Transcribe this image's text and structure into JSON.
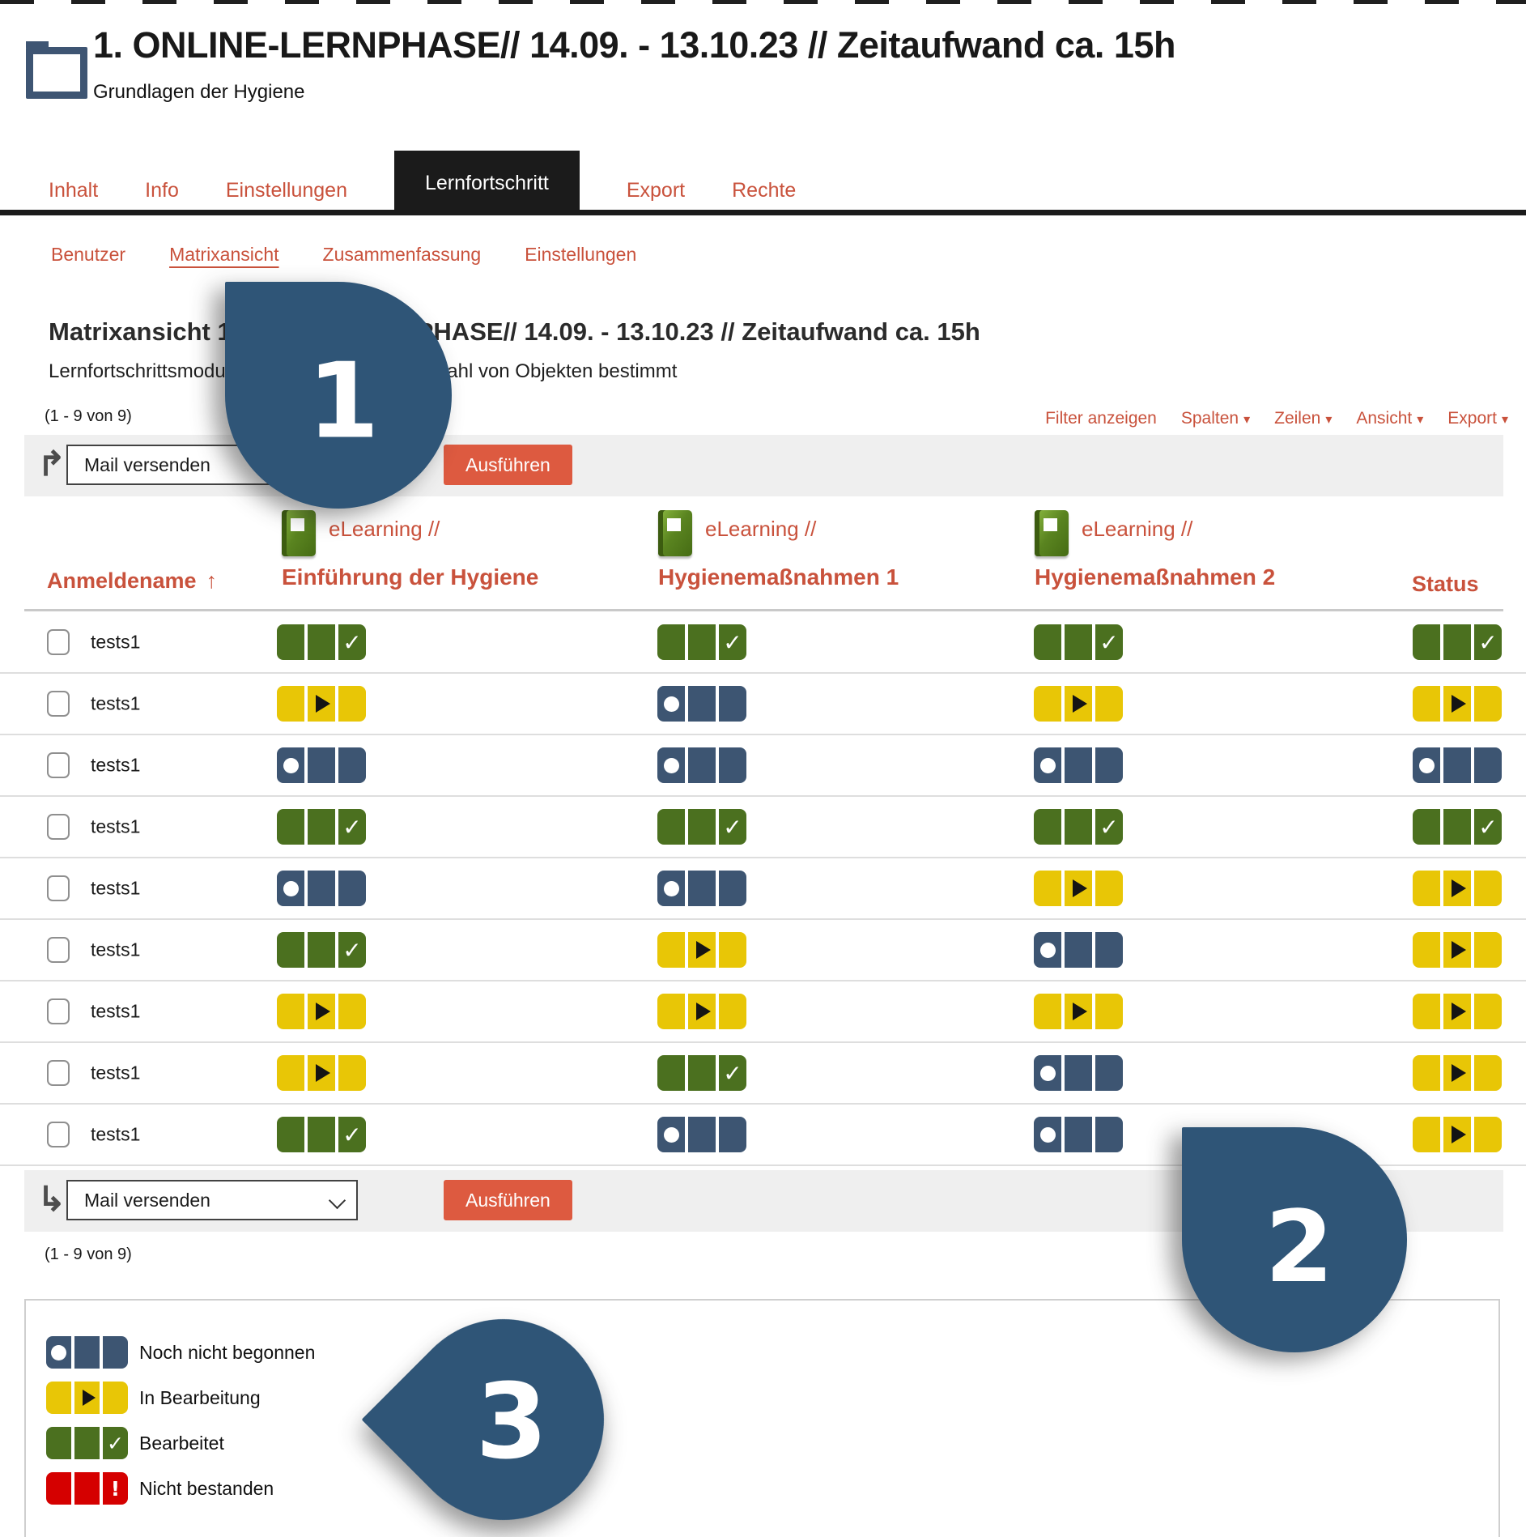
{
  "page": {
    "title": "1. ONLINE-LERNPHASE// 14.09. - 13.10.23 // Zeitaufwand ca. 15h",
    "subtitle": "Grundlagen der Hygiene"
  },
  "tabs": [
    {
      "label": "Inhalt",
      "active": false
    },
    {
      "label": "Info",
      "active": false
    },
    {
      "label": "Einstellungen",
      "active": false
    },
    {
      "label": "Lernfortschritt",
      "active": true
    },
    {
      "label": "Export",
      "active": false
    },
    {
      "label": "Rechte",
      "active": false
    }
  ],
  "subtabs": [
    {
      "label": "Benutzer",
      "active": false
    },
    {
      "label": "Matrixansicht",
      "active": true
    },
    {
      "label": "Zusammenfassung",
      "active": false
    },
    {
      "label": "Einstellungen",
      "active": false
    }
  ],
  "section": {
    "heading": "Matrixansicht 1. ONLINE-LERNPHASE// 14.09. - 13.10.23 // Zeitaufwand ca. 15h",
    "description": "Lernfortschrittsmodus wird anhand einer Auswahl von Objekten bestimmt",
    "pagination": "(1 - 9 von 9)"
  },
  "view_controls": {
    "filter_label": "Filter anzeigen",
    "menus": [
      "Spalten",
      "Zeilen",
      "Ansicht",
      "Export"
    ]
  },
  "toolbar": {
    "select_value": "Mail versenden",
    "execute_label": "Ausführen"
  },
  "table": {
    "user_column": "Anmeldename",
    "status_column": "Status",
    "courses": [
      {
        "type_label": "eLearning //",
        "name": "Einführung der Hygiene"
      },
      {
        "type_label": "eLearning //",
        "name": "Hygienemaßnahmen 1"
      },
      {
        "type_label": "eLearning //",
        "name": "Hygienemaßnahmen 2"
      }
    ],
    "rows": [
      {
        "user": "tests1",
        "statuses": [
          "completed",
          "completed",
          "completed"
        ],
        "overall": "completed"
      },
      {
        "user": "tests1",
        "statuses": [
          "in_progress",
          "not_started",
          "in_progress"
        ],
        "overall": "in_progress"
      },
      {
        "user": "tests1",
        "statuses": [
          "not_started",
          "not_started",
          "not_started"
        ],
        "overall": "not_started"
      },
      {
        "user": "tests1",
        "statuses": [
          "completed",
          "completed",
          "completed"
        ],
        "overall": "completed"
      },
      {
        "user": "tests1",
        "statuses": [
          "not_started",
          "not_started",
          "in_progress"
        ],
        "overall": "in_progress"
      },
      {
        "user": "tests1",
        "statuses": [
          "completed",
          "in_progress",
          "not_started"
        ],
        "overall": "in_progress"
      },
      {
        "user": "tests1",
        "statuses": [
          "in_progress",
          "in_progress",
          "in_progress"
        ],
        "overall": "in_progress"
      },
      {
        "user": "tests1",
        "statuses": [
          "in_progress",
          "completed",
          "not_started"
        ],
        "overall": "in_progress"
      },
      {
        "user": "tests1",
        "statuses": [
          "completed",
          "not_started",
          "not_started"
        ],
        "overall": "in_progress"
      }
    ]
  },
  "legend": [
    {
      "status": "not_started",
      "label": "Noch nicht begonnen"
    },
    {
      "status": "in_progress",
      "label": "In Bearbeitung"
    },
    {
      "status": "completed",
      "label": "Bearbeitet"
    },
    {
      "status": "failed",
      "label": "Nicht bestanden"
    }
  ],
  "annotations": [
    {
      "number": "1"
    },
    {
      "number": "2"
    },
    {
      "number": "3"
    }
  ],
  "icons": {
    "caret": "▾",
    "sort_asc": "↑",
    "apply_top": "↱",
    "apply_bottom": "↳",
    "check": "✓",
    "exclamation": "!"
  },
  "colors": {
    "accent": "#c9523c",
    "button": "#dd5a40",
    "completed": "#4b701f",
    "in_progress": "#e8c606",
    "not_started": "#3d5572",
    "failed": "#d50000",
    "annotation": "#2f5577"
  }
}
